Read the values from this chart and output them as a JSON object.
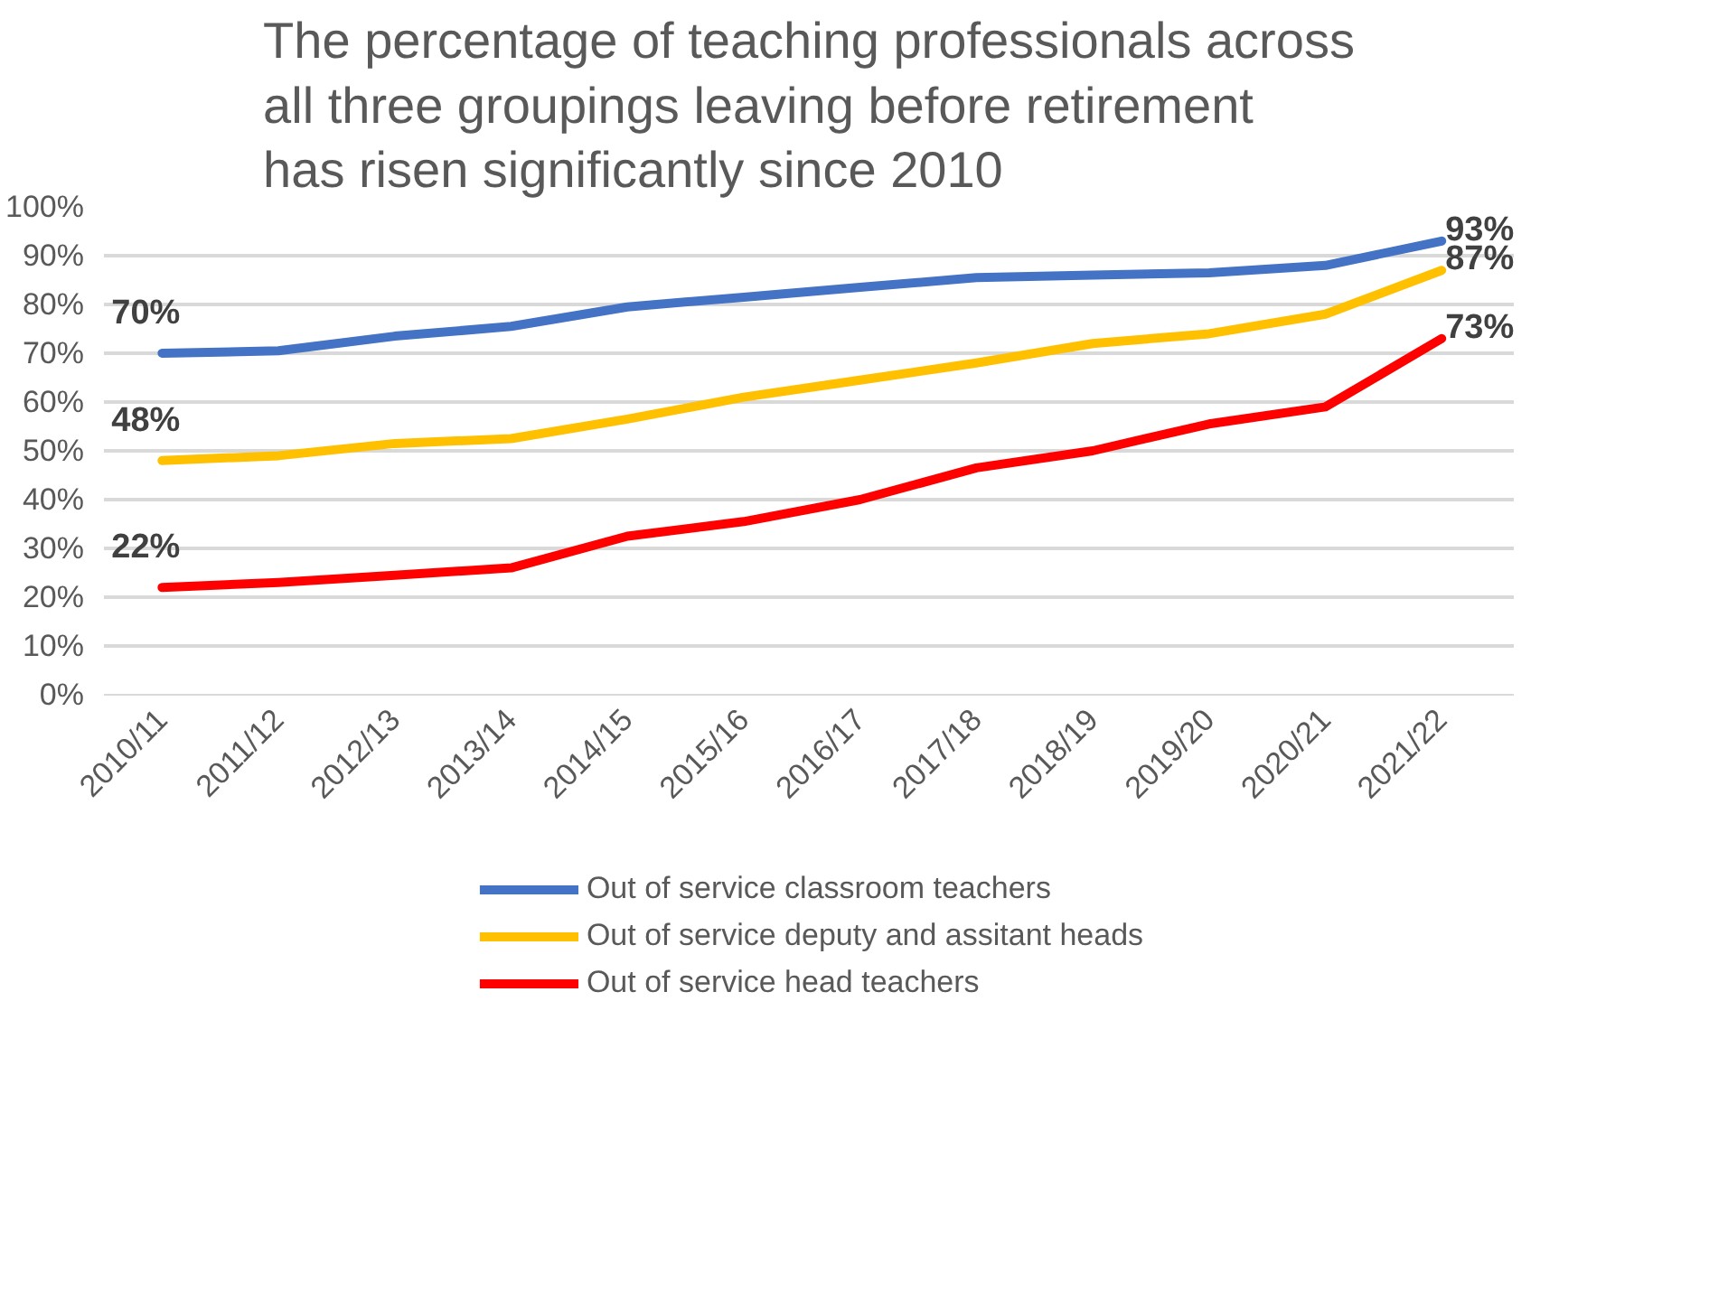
{
  "chart_data": {
    "type": "line",
    "title": "The percentage of teaching professionals across all three groupings leaving before retirement has risen significantly since 2010",
    "categories": [
      "2010/11",
      "2011/12",
      "2012/13",
      "2013/14",
      "2014/15",
      "2015/16",
      "2016/17",
      "2017/18",
      "2018/19",
      "2019/20",
      "2020/21",
      "2021/22"
    ],
    "ylim": [
      0,
      100
    ],
    "yticks": [
      {
        "value": 0,
        "label": "0%"
      },
      {
        "value": 10,
        "label": "10%"
      },
      {
        "value": 20,
        "label": "20%"
      },
      {
        "value": 30,
        "label": "30%"
      },
      {
        "value": 40,
        "label": "40%"
      },
      {
        "value": 50,
        "label": "50%"
      },
      {
        "value": 60,
        "label": "60%"
      },
      {
        "value": 70,
        "label": "70%"
      },
      {
        "value": 80,
        "label": "80%"
      },
      {
        "value": 90,
        "label": "90%"
      },
      {
        "value": 100,
        "label": "100%"
      }
    ],
    "grid": "y",
    "legend": "bottom",
    "marker": "none",
    "line_style": "solid",
    "series": [
      {
        "name": "Out of service classroom teachers",
        "color": "#4472c4",
        "values": [
          70,
          70.5,
          73.5,
          75.5,
          79.5,
          81.5,
          83.5,
          85.5,
          86,
          86.5,
          88,
          93
        ],
        "value_labels": [
          "70%",
          null,
          null,
          null,
          null,
          null,
          null,
          null,
          null,
          null,
          null,
          "93%"
        ]
      },
      {
        "name": "Out of service deputy and assitant heads",
        "color": "#ffc000",
        "values": [
          48,
          49,
          51.5,
          52.5,
          56.5,
          61,
          64.5,
          68,
          72,
          74,
          78,
          87
        ],
        "value_labels": [
          "48%",
          null,
          null,
          null,
          null,
          null,
          null,
          null,
          null,
          null,
          null,
          "87%"
        ]
      },
      {
        "name": "Out of service head teachers",
        "color": "#ff0000",
        "values": [
          22,
          23,
          24.5,
          26,
          32.5,
          35.5,
          40,
          46.5,
          50,
          55.5,
          59,
          73
        ],
        "value_labels": [
          "22%",
          null,
          null,
          null,
          null,
          null,
          null,
          null,
          null,
          null,
          null,
          "73%"
        ]
      }
    ]
  }
}
